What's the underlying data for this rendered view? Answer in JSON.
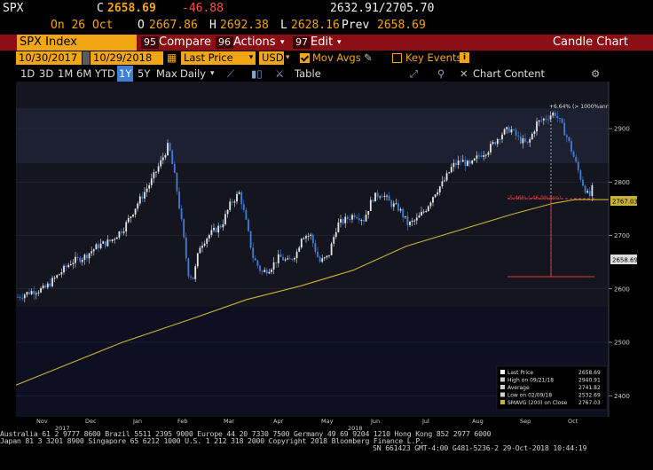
{
  "quote": {
    "ticker": "SPX",
    "close_label": "C",
    "close": "2658.69",
    "change": "-46.88",
    "range": "2632.91/2705.70",
    "date_label": "On 26 Oct",
    "open_label": "O",
    "open": "2667.86",
    "high_label": "H",
    "high": "2692.38",
    "low_label": "L",
    "low": "2628.16",
    "prev_label": "Prev",
    "prev": "2658.69"
  },
  "toolbar": {
    "security": "SPX Index",
    "compare": "Compare",
    "compare_num": "95",
    "actions": "Actions",
    "actions_num": "96",
    "edit": "Edit",
    "edit_num": "97",
    "title": "Candle Chart"
  },
  "params": {
    "start_date": "10/30/2017",
    "end_date": "10/29/2018",
    "price_field": "Last Price",
    "currency": "USD",
    "mov_avgs": "Mov Avgs",
    "key_events": "Key Events"
  },
  "ranges": [
    "1D",
    "3D",
    "1M",
    "6M",
    "YTD",
    "1Y",
    "5Y",
    "Max"
  ],
  "selected_range": "1Y",
  "period": "Daily",
  "table_label": "Table",
  "chart_content_label": "Chart Content",
  "chart": {
    "y_ticks": [
      "2900",
      "2800",
      "2700",
      "2600",
      "2500",
      "2400"
    ],
    "x_months": [
      "Nov",
      "Dec",
      "Jan",
      "Feb",
      "Mar",
      "Apr",
      "May",
      "Jun",
      "Jul",
      "Aug",
      "Sep",
      "Oct"
    ],
    "x_years": [
      "2017",
      "2018"
    ],
    "last_price_tag": "2658.69",
    "sma_tag": "2767.03",
    "high_annotation": "+6.64% (> 1000%ann",
    "mid_annotation": "-5.46% (-46.9%ann)"
  },
  "legend": {
    "items": [
      {
        "label": "Last Price",
        "value": "2658.69"
      },
      {
        "label": "High on 09/21/18",
        "value": "2940.91"
      },
      {
        "label": "Average",
        "value": "2741.82"
      },
      {
        "label": "Low on 02/09/18",
        "value": "2532.69"
      },
      {
        "label": "SMAVG (200) on Close",
        "value": "2767.03"
      }
    ]
  },
  "colors": {
    "amber": "#f3a614",
    "up_candle": "#e6e6e6",
    "down_candle": "#3f7fd6",
    "sma_line": "#c9b135",
    "toolbar_red": "#8b0f14"
  },
  "footer": {
    "line1": "Australia 61 2 9777 8600 Brazil 5511 2395 9000 Europe 44 20 7330 7500 Germany 49 69 9204 1210 Hong Kong 852 2977 6000",
    "line2": "Japan 81 3 3201 8900        Singapore 65 6212 1000       U.S. 1 212 318 2000           Copyright 2018 Bloomberg Finance L.P.",
    "line3": "SN 661423 GMT-4:00 G481-5236-2 29-Oct-2018 10:44:19"
  }
}
